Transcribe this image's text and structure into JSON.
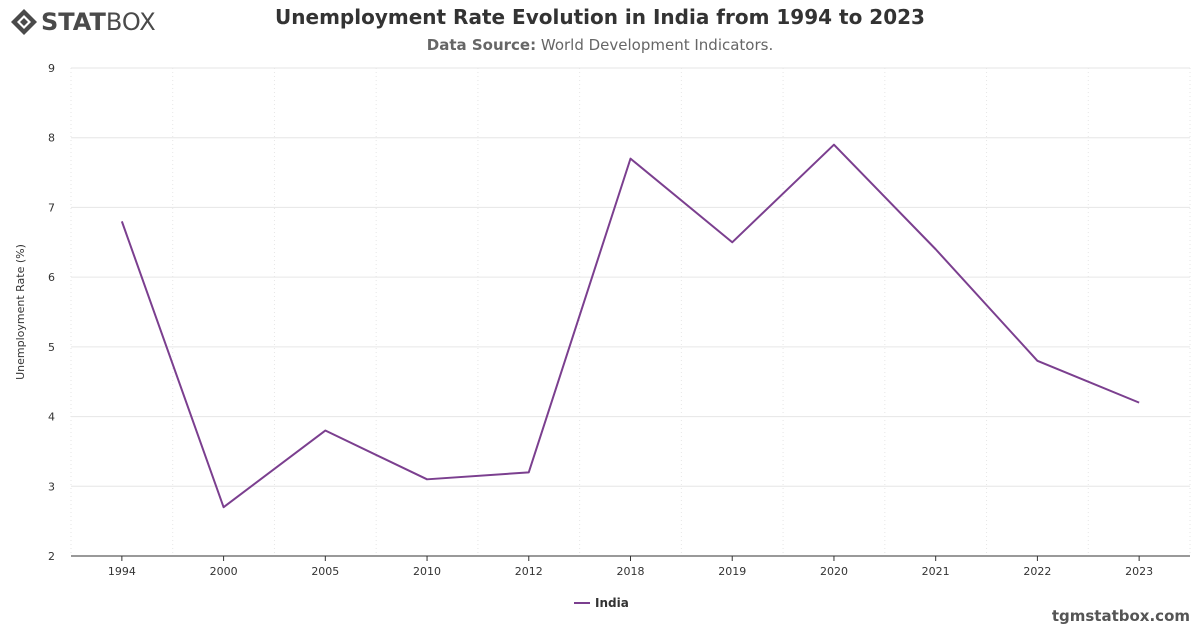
{
  "brand": {
    "name_bold": "STAT",
    "name_light": "BOX",
    "icon": "statbox-diamond-icon"
  },
  "title": "Unemployment Rate Evolution in India from 1994 to 2023",
  "subtitle": {
    "label": "Data Source:",
    "text": " World Development Indicators."
  },
  "watermark": "tgmstatbox.com",
  "colors": {
    "series": "#7b3f8f",
    "grid": "#e6e6e6",
    "axis": "#333333",
    "text": "#333333"
  },
  "chart_data": {
    "type": "line",
    "title": "Unemployment Rate Evolution in India from 1994 to 2023",
    "xlabel": "",
    "ylabel": "Unemployment Rate (%)",
    "ylim": [
      2,
      9
    ],
    "yticks": [
      "2",
      "3",
      "4",
      "5",
      "6",
      "7",
      "8",
      "9"
    ],
    "categories": [
      "1994",
      "2000",
      "2005",
      "2010",
      "2012",
      "2018",
      "2019",
      "2020",
      "2021",
      "2022",
      "2023"
    ],
    "series": [
      {
        "name": "India",
        "values": [
          6.8,
          2.7,
          3.8,
          3.1,
          3.2,
          7.7,
          6.5,
          7.9,
          6.4,
          4.8,
          4.2
        ]
      }
    ],
    "grid": true,
    "legend_position": "bottom-center"
  }
}
